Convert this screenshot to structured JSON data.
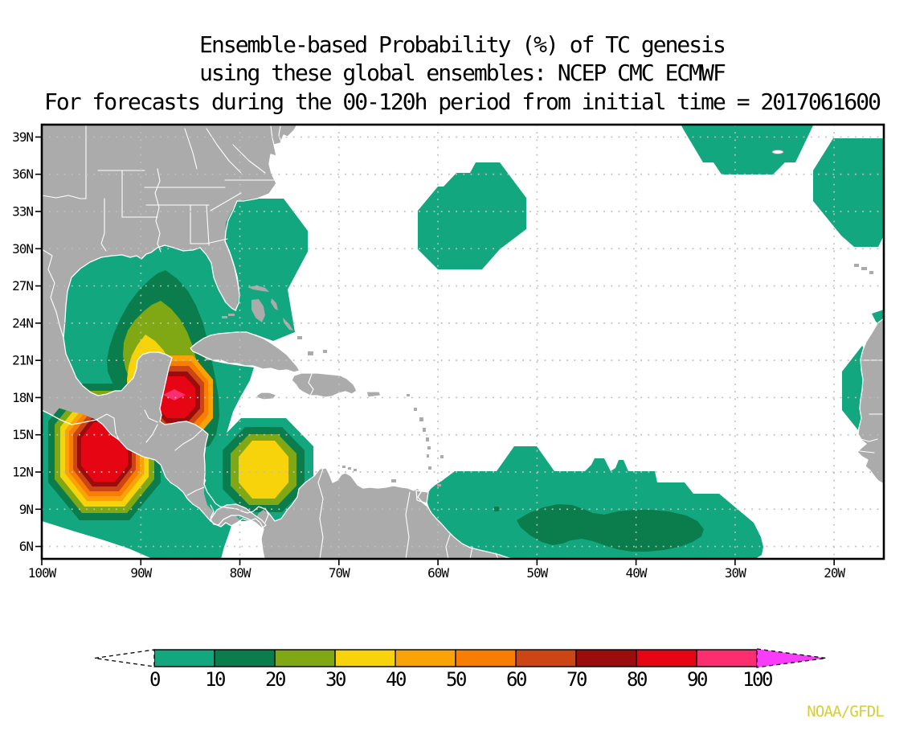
{
  "title": {
    "line1": "Ensemble-based Probability (%) of TC genesis",
    "line2": "using these global ensembles:   NCEP CMC ECMWF",
    "line3": "For forecasts during the 00-120h period from initial time = 2017061600"
  },
  "credit": "NOAA/GFDL",
  "axes": {
    "lat_labels": [
      "39N",
      "36N",
      "33N",
      "30N",
      "27N",
      "24N",
      "21N",
      "18N",
      "15N",
      "12N",
      "9N",
      "6N"
    ],
    "lon_labels": [
      "100W",
      "90W",
      "80W",
      "70W",
      "60W",
      "50W",
      "40W",
      "30W",
      "20W"
    ]
  },
  "colorbar": {
    "tick_labels": [
      "0",
      "10",
      "20",
      "30",
      "40",
      "50",
      "60",
      "70",
      "80",
      "90",
      "100"
    ],
    "colors": [
      "#12a77e",
      "#0b7c4b",
      "#7fa814",
      "#f6d30b",
      "#f9a306",
      "#f87e03",
      "#cc4514",
      "#9b0d0d",
      "#e60613",
      "#fb2f70"
    ],
    "arrow_right_color": "#f93cf9"
  },
  "chart_data": {
    "type": "heatmap",
    "subtype": "filled-contour-probability-map",
    "region": {
      "lon_range_deg_west": [
        100,
        15
      ],
      "lat_range_deg_north": [
        5,
        40
      ]
    },
    "levels_percent": [
      0,
      10,
      20,
      30,
      40,
      50,
      60,
      70,
      80,
      90,
      100
    ],
    "palette": [
      "#12a77e",
      "#0b7c4b",
      "#7fa814",
      "#f6d30b",
      "#f9a306",
      "#f87e03",
      "#cc4514",
      "#9b0d0d",
      "#e60613",
      "#fb2f70"
    ],
    "title": "Ensemble-based Probability (%) of TC genesis using these global ensembles: NCEP CMC ECMWF for forecasts during the 00-120h period from initial time = 2017061600",
    "features": [
      {
        "name": "NW Caribbean / Gulf of Mexico genesis area",
        "center_lon_lat": [
          -86.5,
          18.2
        ],
        "max_level_percent": 95
      },
      {
        "name": "Eastern Pacific (south of Guatemala) genesis area",
        "center_lon_lat": [
          -93.5,
          13.5
        ],
        "max_level_percent": 85
      },
      {
        "name": "SW Caribbean blob",
        "center_lon_lat": [
          -77.5,
          12.2
        ],
        "max_level_percent": 35
      },
      {
        "name": "Tropical Atlantic wave band",
        "center_lon_lat": [
          -43,
          8
        ],
        "max_level_percent": 15
      },
      {
        "name": "Central subtropical Atlantic blob",
        "center_lon_lat": [
          -56.5,
          32.5
        ],
        "max_level_percent": 5
      },
      {
        "name": "NE Atlantic blobs near Azores and NW Africa",
        "center_lon_lat": [
          -25,
          37
        ],
        "max_level_percent": 5
      },
      {
        "name": "West Africa coastal blob",
        "center_lon_lat": [
          -17,
          19
        ],
        "max_level_percent": 5
      }
    ],
    "grid": {
      "lat_ticks": [
        39,
        36,
        33,
        30,
        27,
        24,
        21,
        18,
        15,
        12,
        9,
        6
      ],
      "lon_ticks": [
        -100,
        -90,
        -80,
        -70,
        -60,
        -50,
        -40,
        -30,
        -20
      ],
      "style": "dotted"
    }
  }
}
